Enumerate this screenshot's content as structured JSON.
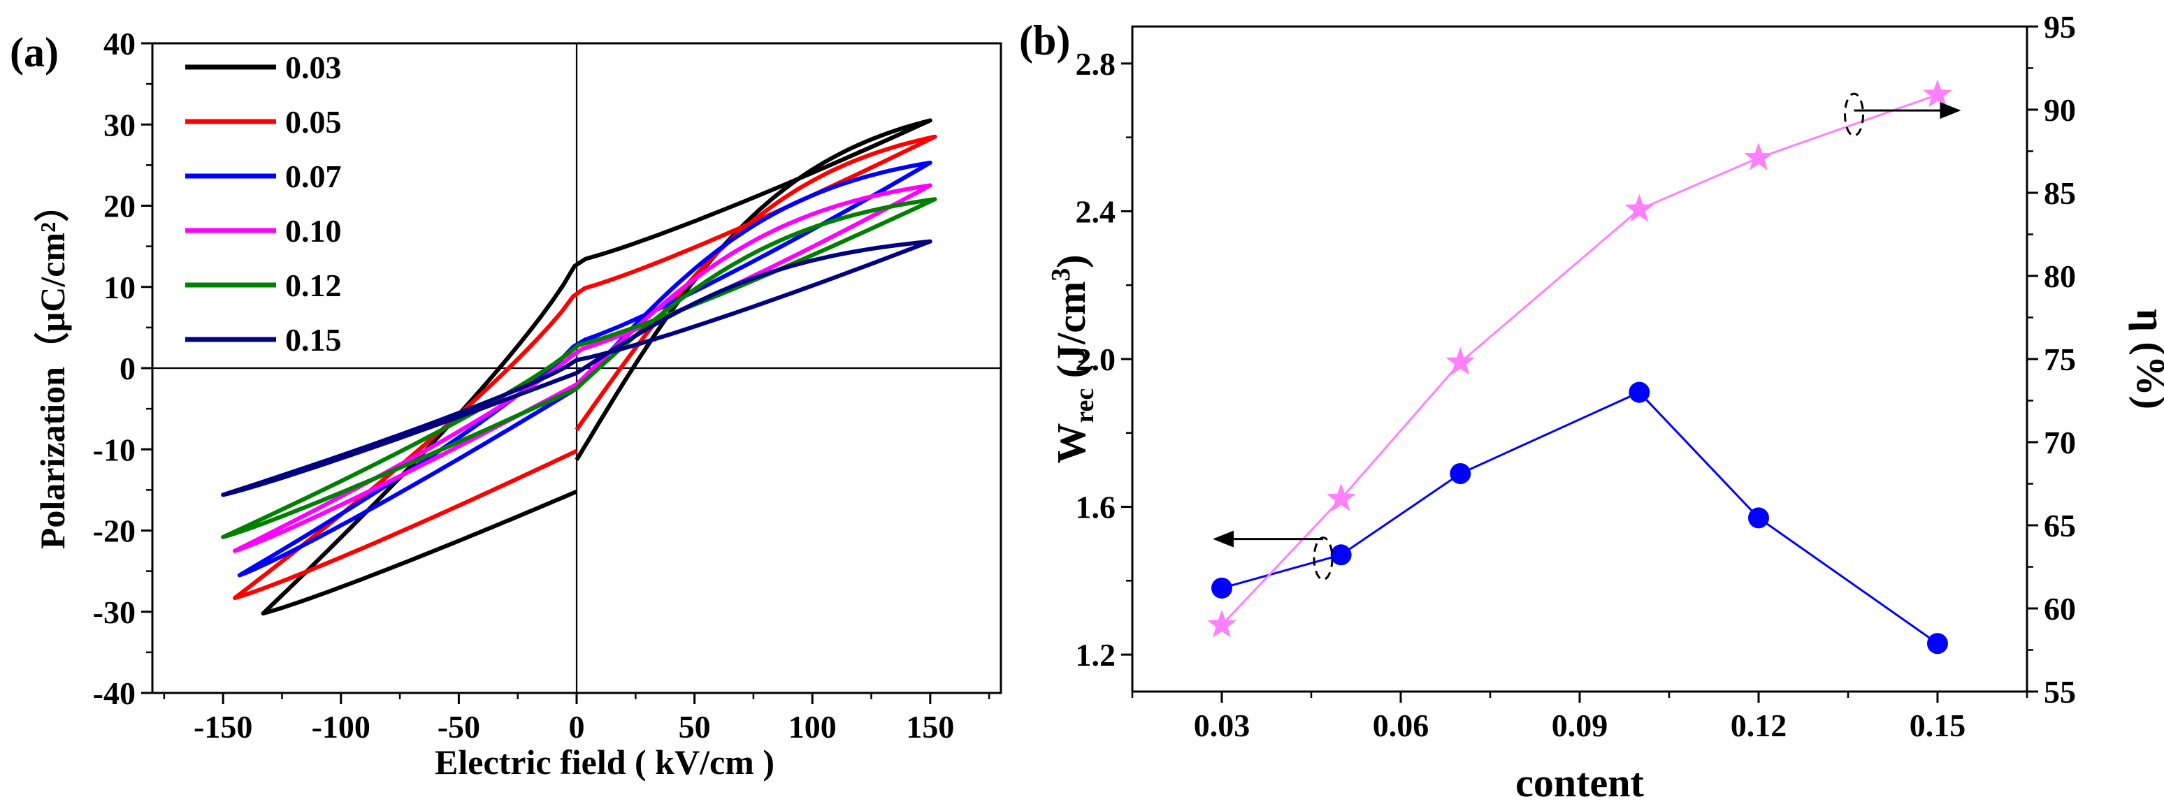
{
  "chart_data": [
    {
      "panel": "(a)",
      "type": "line",
      "xlabel": "Electric field ( kV/cm )",
      "ylabel": "Polarization（μC/cm²）",
      "xlim": [
        -180,
        180
      ],
      "ylim": [
        -40,
        40
      ],
      "xticks": [
        -150,
        -100,
        -50,
        0,
        50,
        100,
        150
      ],
      "yticks": [
        -40,
        -30,
        -20,
        -10,
        0,
        10,
        20,
        30,
        40
      ],
      "xtick_labels": [
        "-150",
        "-100",
        "-50",
        "0",
        "50",
        "100",
        "150"
      ],
      "ytick_labels": [
        "-40",
        "-30",
        "-20",
        "-10",
        "0",
        "10",
        "20",
        "30",
        "40"
      ],
      "legend_position": "top-left",
      "series": [
        {
          "name": "0.03",
          "color": "#000000",
          "Emax": 150,
          "Emin": -133,
          "Pmax": 30.5,
          "Pmin": -30.2,
          "Pr_up": -11.3,
          "Pr_down": 13.2,
          "Ec": 42,
          "end": -15.2
        },
        {
          "name": "0.05",
          "color": "#ff0000",
          "Emax": 152,
          "Emin": -145,
          "Pmax": 28.5,
          "Pmin": -28.3,
          "Pr_up": -7.6,
          "Pr_down": 9.6,
          "Ec": 35,
          "end": -10.2
        },
        {
          "name": "0.07",
          "color": "#0000ff",
          "Emax": 150,
          "Emin": -143,
          "Pmax": 25.3,
          "Pmin": -25.5,
          "Pr_up": -2.5,
          "Pr_down": 3.2,
          "Ec": 15,
          "end": -2.5
        },
        {
          "name": "0.10",
          "color": "#ff00ff",
          "Emax": 150,
          "Emin": -145,
          "Pmax": 22.5,
          "Pmin": -22.5,
          "Pr_up": -2.0,
          "Pr_down": 2.2,
          "Ec": 12,
          "end": -2.0
        },
        {
          "name": "0.12",
          "color": "#008000",
          "Emax": 152,
          "Emin": -150,
          "Pmax": 20.8,
          "Pmin": -20.8,
          "Pr_up": -2.5,
          "Pr_down": 2.8,
          "Ec": 13,
          "end": -2.5
        },
        {
          "name": "0.15",
          "color": "#000080",
          "Emax": 150,
          "Emin": -150,
          "Pmax": 15.6,
          "Pmin": -15.6,
          "Pr_up": -0.6,
          "Pr_down": 1.0,
          "Ec": 4,
          "end": -0.6
        }
      ]
    },
    {
      "panel": "(b)",
      "type": "line",
      "xlabel": "content",
      "ylabel_left": "W_rec (J/cm³)",
      "ylabel_right": "η (%)",
      "xlim": [
        0.015,
        0.165
      ],
      "ylim_left": [
        1.1,
        2.9
      ],
      "ylim_right": [
        55,
        95
      ],
      "xticks": [
        0.03,
        0.06,
        0.09,
        0.12,
        0.15
      ],
      "xtick_labels": [
        "0.03",
        "0.06",
        "0.09",
        "0.12",
        "0.15"
      ],
      "yticks_left": [
        1.2,
        1.6,
        2.0,
        2.4,
        2.8
      ],
      "ytick_labels_left": [
        "1.2",
        "1.6",
        "2.0",
        "2.4",
        "2.8"
      ],
      "yticks_right": [
        55,
        60,
        65,
        70,
        75,
        80,
        85,
        90,
        95
      ],
      "ytick_labels_right": [
        "55",
        "60",
        "65",
        "70",
        "75",
        "80",
        "85",
        "90",
        "95"
      ],
      "x": [
        0.03,
        0.05,
        0.07,
        0.1,
        0.12,
        0.15
      ],
      "series": [
        {
          "name": "Wrec",
          "axis": "left",
          "marker": "circle",
          "color": "#0000ff",
          "values": [
            1.38,
            1.47,
            1.69,
            1.91,
            1.57,
            1.23
          ]
        },
        {
          "name": "eta",
          "axis": "right",
          "marker": "star",
          "color": "#ff80ff",
          "values": [
            59.0,
            66.6,
            74.8,
            84.0,
            87.1,
            90.9
          ]
        }
      ],
      "annotations": [
        {
          "label": "Wrec-left-axis-indicator",
          "x": 0.047,
          "y_left": 1.46,
          "direction": "left"
        },
        {
          "label": "eta-right-axis-indicator",
          "x": 0.136,
          "y_right": 89.7,
          "direction": "right"
        }
      ]
    }
  ]
}
